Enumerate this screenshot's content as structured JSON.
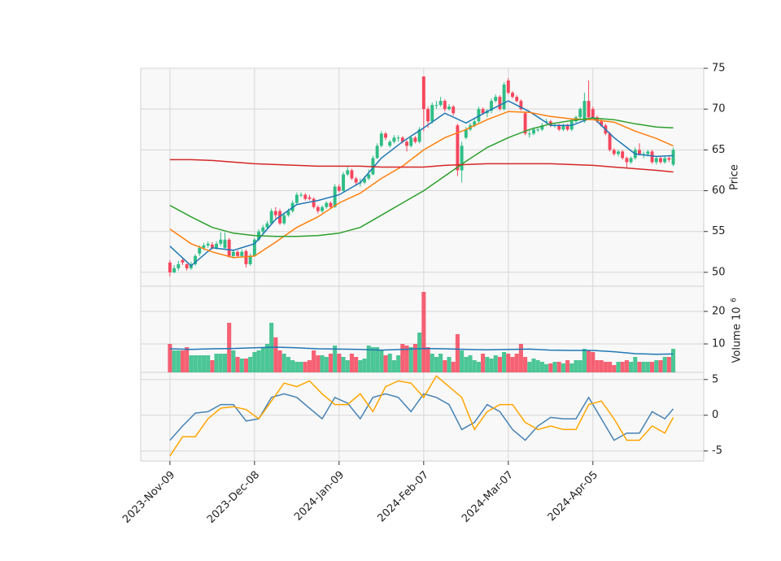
{
  "chart_data": {
    "type": "candlestick",
    "xlim": [
      -6.9,
      126.2
    ],
    "xticks": [
      {
        "value": 0,
        "label": "2023-Nov-09"
      },
      {
        "value": 20,
        "label": "2023-Dec-08"
      },
      {
        "value": 40,
        "label": "2024-Jan-09"
      },
      {
        "value": 60,
        "label": "2024-Feb-07"
      },
      {
        "value": 80,
        "label": "2024-Mar-07"
      },
      {
        "value": 100,
        "label": "2024-Apr-05"
      }
    ],
    "up_color": "#2ebd85",
    "down_color": "#f6465d",
    "candles": [
      [
        51.2,
        51.5,
        49.5,
        50
      ],
      [
        50,
        50.9,
        49.9,
        50.5
      ],
      [
        50.5,
        51.4,
        50.2,
        51.0
      ],
      [
        51.5,
        51.8,
        50.9,
        51.2
      ],
      [
        51.0,
        51.1,
        50.2,
        50.5
      ],
      [
        50.5,
        51.3,
        50.3,
        51.0
      ],
      [
        51.0,
        52.2,
        50.8,
        52.0
      ],
      [
        52.3,
        53.3,
        52.0,
        53.0
      ],
      [
        53.0,
        53.6,
        52.7,
        53.3
      ],
      [
        53.3,
        53.8,
        53.0,
        53.5
      ],
      [
        53.4,
        53.7,
        52.8,
        53.0
      ],
      [
        53.0,
        53.8,
        52.8,
        53.5
      ],
      [
        53.5,
        54.9,
        53.2,
        54.0
      ],
      [
        53.0,
        54.9,
        52.8,
        54.0
      ],
      [
        54.0,
        54.2,
        51.8,
        52.0
      ],
      [
        52.0,
        52.8,
        51.7,
        52.5
      ],
      [
        52.5,
        52.7,
        51.8,
        52.0
      ],
      [
        52.0,
        52.8,
        51.8,
        52.5
      ],
      [
        52.6,
        52.8,
        50.6,
        51.0
      ],
      [
        51.0,
        52.3,
        50.8,
        52.0
      ],
      [
        52.0,
        54.2,
        51.9,
        54.0
      ],
      [
        54.0,
        55.3,
        53.8,
        55.0
      ],
      [
        55.0,
        55.8,
        54.7,
        55.5
      ],
      [
        55.5,
        56.3,
        55.3,
        56.0
      ],
      [
        56.0,
        57.8,
        55.8,
        57.5
      ],
      [
        57.5,
        58.0,
        56.6,
        57.0
      ],
      [
        57.5,
        57.8,
        55.8,
        56.0
      ],
      [
        56.0,
        57.3,
        55.8,
        57.0
      ],
      [
        57.0,
        57.8,
        56.8,
        57.5
      ],
      [
        57.5,
        58.8,
        57.3,
        58.5
      ],
      [
        58.5,
        59.8,
        58.3,
        59.5
      ],
      [
        59.5,
        59.8,
        59.2,
        59.5
      ],
      [
        59.5,
        59.7,
        58.8,
        59.0
      ],
      [
        59.2,
        59.5,
        58.8,
        59.0
      ],
      [
        59.0,
        59.2,
        57.8,
        58.0
      ],
      [
        58.0,
        58.2,
        57.2,
        57.5
      ],
      [
        57.5,
        58.2,
        57.3,
        58.0
      ],
      [
        58.0,
        58.7,
        57.8,
        58.5
      ],
      [
        58.5,
        58.7,
        57.8,
        58.0
      ],
      [
        58.0,
        60.8,
        57.9,
        60.5
      ],
      [
        60.5,
        60.8,
        59.8,
        60.0
      ],
      [
        60.0,
        62.3,
        59.9,
        62.0
      ],
      [
        62.0,
        62.9,
        61.8,
        62.5
      ],
      [
        62.5,
        62.7,
        61.3,
        61.5
      ],
      [
        61.5,
        61.7,
        60.6,
        61.0
      ],
      [
        61.0,
        61.5,
        60.5,
        61.0
      ],
      [
        61.0,
        61.8,
        60.8,
        61.5
      ],
      [
        61.5,
        62.6,
        61.3,
        62.0
      ],
      [
        62.0,
        64.3,
        61.9,
        64.0
      ],
      [
        64.0,
        65.8,
        63.9,
        65.5
      ],
      [
        65.5,
        67.3,
        65.3,
        67.0
      ],
      [
        67.0,
        67.2,
        66.2,
        66.5
      ],
      [
        65.5,
        66.2,
        65.3,
        66.0
      ],
      [
        66.0,
        66.8,
        65.8,
        66.5
      ],
      [
        66.5,
        66.8,
        66.0,
        66.5
      ],
      [
        66.5,
        66.7,
        65.8,
        66.0
      ],
      [
        66.0,
        66.2,
        64.8,
        65.5
      ],
      [
        65.5,
        66.8,
        65.3,
        66.5
      ],
      [
        66.5,
        66.7,
        65.8,
        66.0
      ],
      [
        66.0,
        67.8,
        65.8,
        67.5
      ],
      [
        74.0,
        74.0,
        67.3,
        70.0
      ],
      [
        70.0,
        70.3,
        67.7,
        68.5
      ],
      [
        68.5,
        70.8,
        68.2,
        70.5
      ],
      [
        70.5,
        71.0,
        70.0,
        70.5
      ],
      [
        70.5,
        71.5,
        70.3,
        71.0
      ],
      [
        71.0,
        71.2,
        69.7,
        70.0
      ],
      [
        70.0,
        70.6,
        69.8,
        70.3
      ],
      [
        70.3,
        70.5,
        69.2,
        69.5
      ],
      [
        68.0,
        68.2,
        61.8,
        62.5
      ],
      [
        62.5,
        66.0,
        61.0,
        65.5
      ],
      [
        66.5,
        67.8,
        66.3,
        67.5
      ],
      [
        67.5,
        68.3,
        67.3,
        68.0
      ],
      [
        68.0,
        68.8,
        67.8,
        68.5
      ],
      [
        68.5,
        70.3,
        68.3,
        70.0
      ],
      [
        70.0,
        70.2,
        69.3,
        69.5
      ],
      [
        69.5,
        70.0,
        69.0,
        69.8
      ],
      [
        69.8,
        71.3,
        69.5,
        71.0
      ],
      [
        71.0,
        71.8,
        70.8,
        71.5
      ],
      [
        71.5,
        71.7,
        69.8,
        70.0
      ],
      [
        70.0,
        73.3,
        69.8,
        73.0
      ],
      [
        73.5,
        73.8,
        71.8,
        72.0
      ],
      [
        72.0,
        72.2,
        71.3,
        71.5
      ],
      [
        71.5,
        71.7,
        70.8,
        71.0
      ],
      [
        71.0,
        71.2,
        69.8,
        70.0
      ],
      [
        69.5,
        69.7,
        66.8,
        67.0
      ],
      [
        67.0,
        67.5,
        66.5,
        67.0
      ],
      [
        67.0,
        67.8,
        66.8,
        67.5
      ],
      [
        67.5,
        67.8,
        67.2,
        67.5
      ],
      [
        67.5,
        68.3,
        67.3,
        68.0
      ],
      [
        68.5,
        68.8,
        68.2,
        68.5
      ],
      [
        68.5,
        68.7,
        67.8,
        68.0
      ],
      [
        68.0,
        68.3,
        67.7,
        68.0
      ],
      [
        68.0,
        68.2,
        67.3,
        67.5
      ],
      [
        67.5,
        68.2,
        67.3,
        68.0
      ],
      [
        68.0,
        68.2,
        67.3,
        67.5
      ],
      [
        67.5,
        68.8,
        67.3,
        68.5
      ],
      [
        68.5,
        69.2,
        68.3,
        69.0
      ],
      [
        69.0,
        70.2,
        68.8,
        70.0
      ],
      [
        68.5,
        72.0,
        68.3,
        71.0
      ],
      [
        71.0,
        73.5,
        68.8,
        69.0
      ],
      [
        70.0,
        70.3,
        68.8,
        69.0
      ],
      [
        69.0,
        69.2,
        68.3,
        68.5
      ],
      [
        68.5,
        68.8,
        67.8,
        68.0
      ],
      [
        68.0,
        68.2,
        66.8,
        67.0
      ],
      [
        67.0,
        67.2,
        64.8,
        65.0
      ],
      [
        65.0,
        65.2,
        64.3,
        64.5
      ],
      [
        64.5,
        65.0,
        64.2,
        64.8
      ],
      [
        64.8,
        65.0,
        63.8,
        64.0
      ],
      [
        64.0,
        64.2,
        62.8,
        63.5
      ],
      [
        63.5,
        64.2,
        63.3,
        64.0
      ],
      [
        64.0,
        65.3,
        63.8,
        65.0
      ],
      [
        65.0,
        65.8,
        64.3,
        64.5
      ],
      [
        64.5,
        64.8,
        64.0,
        64.5
      ],
      [
        64.5,
        65.0,
        64.2,
        64.8
      ],
      [
        64.8,
        65.0,
        63.3,
        63.5
      ],
      [
        63.5,
        64.2,
        63.2,
        64.0
      ],
      [
        64.0,
        64.2,
        63.3,
        63.5
      ],
      [
        63.5,
        64.3,
        63.3,
        64.0
      ],
      [
        64.0,
        64.2,
        63.5,
        63.8
      ],
      [
        63.2,
        65.3,
        63.0,
        65.0
      ]
    ],
    "price": {
      "label": "Price",
      "ylim": [
        48.3,
        75
      ],
      "yticks": [
        50,
        55,
        60,
        65,
        70,
        75
      ],
      "lines": [
        {
          "color": "#1f77b4",
          "x": [
            0,
            5,
            10,
            15,
            20,
            25,
            30,
            35,
            40,
            45,
            50,
            55,
            60,
            65,
            70,
            75,
            80,
            85,
            90,
            95,
            100,
            105,
            110,
            115,
            119
          ],
          "values": [
            53.2,
            50.8,
            53,
            52.7,
            53.5,
            56.5,
            58.3,
            58.8,
            59.5,
            61,
            64,
            66,
            67.7,
            69.5,
            68.3,
            69.7,
            71,
            69.7,
            68,
            68,
            69,
            66.5,
            64.5,
            64.2,
            64.3
          ]
        },
        {
          "color": "#ff7f0e",
          "x": [
            0,
            5,
            10,
            15,
            20,
            25,
            30,
            35,
            40,
            45,
            50,
            55,
            60,
            65,
            70,
            75,
            80,
            85,
            90,
            95,
            100,
            105,
            110,
            115,
            119
          ],
          "values": [
            55.3,
            53.5,
            52.5,
            51.8,
            52.0,
            53.7,
            55.5,
            56.8,
            58.5,
            59.7,
            61.5,
            63,
            65,
            66.5,
            67.5,
            68.7,
            69.7,
            69.6,
            69.1,
            68.8,
            68.7,
            68.4,
            67.3,
            66.4,
            65.5
          ]
        },
        {
          "color": "#2ca02c",
          "x": [
            0,
            5,
            10,
            15,
            20,
            25,
            30,
            35,
            40,
            45,
            50,
            55,
            60,
            65,
            70,
            75,
            80,
            85,
            90,
            95,
            100,
            105,
            110,
            115,
            119
          ],
          "values": [
            58.2,
            56.8,
            55.5,
            54.8,
            54.5,
            54.4,
            54.4,
            54.5,
            54.8,
            55.5,
            57,
            58.5,
            60,
            61.8,
            63.6,
            65.3,
            66.5,
            67.5,
            68.2,
            68.6,
            68.9,
            68.7,
            68.2,
            67.8,
            67.7
          ]
        },
        {
          "color": "#d62728",
          "x": [
            0,
            5,
            10,
            15,
            20,
            25,
            30,
            35,
            40,
            45,
            50,
            55,
            60,
            65,
            70,
            75,
            80,
            85,
            90,
            95,
            100,
            105,
            110,
            115,
            119
          ],
          "values": [
            63.8,
            63.8,
            63.7,
            63.5,
            63.3,
            63.2,
            63.1,
            63.0,
            63.0,
            63.0,
            62.9,
            62.9,
            62.9,
            63.1,
            63.2,
            63.3,
            63.3,
            63.3,
            63.3,
            63.2,
            63.1,
            62.9,
            62.7,
            62.5,
            62.3
          ]
        }
      ]
    },
    "volume": {
      "label": "Volume  10",
      "exponent": "6",
      "ylim": [
        1.25,
        27.75
      ],
      "yticks": [
        10,
        20
      ],
      "values": [
        10,
        8,
        8,
        8,
        9,
        6.5,
        6.5,
        6.5,
        6.5,
        6.5,
        5,
        7,
        7,
        7,
        16.5,
        8,
        6,
        5.5,
        5.5,
        6,
        7.5,
        8,
        9,
        10,
        16.5,
        12,
        8,
        7,
        6,
        5,
        4.5,
        4.5,
        4.5,
        5,
        8,
        6.5,
        6.5,
        6,
        7,
        9.5,
        7,
        6,
        5,
        7,
        6,
        5,
        5.5,
        9.5,
        9,
        9,
        8,
        6.5,
        7,
        5,
        6.5,
        10,
        9.5,
        9,
        10,
        13.5,
        26,
        9,
        7,
        6,
        7,
        5,
        6,
        4.5,
        13,
        8,
        6,
        6.5,
        5,
        4.5,
        7,
        6,
        5.5,
        6.5,
        6,
        7.5,
        7,
        6,
        7,
        10,
        6,
        4.5,
        5.5,
        5,
        4.5,
        3.8,
        4,
        4.5,
        4.5,
        4,
        5,
        4,
        5,
        5,
        8.5,
        8,
        7.5,
        5,
        5,
        4.5,
        4.5,
        3.5,
        4.5,
        4.5,
        5,
        4.5,
        6,
        4.5,
        4.5,
        4.5,
        4.5,
        5,
        5,
        6,
        6,
        8.5
      ],
      "lines": [
        {
          "color": "#1f77b4",
          "x": [
            0,
            5,
            10,
            15,
            20,
            25,
            30,
            35,
            40,
            45,
            50,
            55,
            60,
            65,
            70,
            75,
            80,
            85,
            90,
            95,
            100,
            105,
            110,
            115,
            119
          ],
          "values": [
            8.5,
            8.3,
            8.5,
            8.6,
            8.8,
            9.0,
            8.8,
            8.5,
            8.4,
            8.3,
            8.1,
            8.3,
            8.6,
            8.5,
            8.3,
            8.2,
            8.3,
            8.4,
            8.1,
            8.0,
            8.0,
            7.6,
            7.0,
            6.8,
            6.9
          ]
        }
      ]
    },
    "indicator": {
      "ylim": [
        -6.4,
        6.0
      ],
      "yticks": [
        -5,
        0,
        5
      ],
      "lines": [
        {
          "color": "#4682b4",
          "x": [
            0,
            3,
            6,
            9,
            12,
            15,
            18,
            21,
            24,
            27,
            30,
            33,
            36,
            39,
            42,
            45,
            48,
            51,
            54,
            57,
            60,
            63,
            66,
            69,
            72,
            75,
            78,
            81,
            84,
            87,
            90,
            93,
            96,
            99,
            102,
            105,
            108,
            111,
            114,
            117,
            119
          ],
          "values": [
            -3.5,
            -1.5,
            0.3,
            0.5,
            1.5,
            1.5,
            -0.8,
            -0.5,
            2.5,
            3,
            2.5,
            1,
            -0.5,
            2.5,
            1.7,
            -0.5,
            2.5,
            3,
            2.5,
            0.5,
            3,
            2.5,
            1.5,
            -2,
            -1,
            1.5,
            0.5,
            -2,
            -3.5,
            -1.5,
            -0.3,
            -0.5,
            -0.5,
            2.5,
            -0.5,
            -3.5,
            -2.5,
            -2.5,
            0.5,
            -0.5,
            0.9
          ]
        },
        {
          "color": "#ffa500",
          "x": [
            0,
            3,
            6,
            9,
            12,
            15,
            18,
            21,
            24,
            27,
            30,
            33,
            36,
            39,
            42,
            45,
            48,
            51,
            54,
            57,
            60,
            63,
            66,
            69,
            72,
            75,
            78,
            81,
            84,
            87,
            90,
            93,
            96,
            99,
            102,
            105,
            108,
            111,
            114,
            117,
            119
          ],
          "values": [
            -5.7,
            -3,
            -3,
            -0.5,
            1,
            1.2,
            0.8,
            -0.5,
            2,
            4.5,
            4,
            4.8,
            3,
            1.5,
            1.5,
            3,
            0.5,
            4,
            4.8,
            4.5,
            2.5,
            5.5,
            4,
            2.5,
            -2,
            0.5,
            1.5,
            1.5,
            -1,
            -2,
            -1.5,
            -2,
            -2,
            1.5,
            2,
            -0.5,
            -3.5,
            -3.5,
            -1.5,
            -2.5,
            -0.3
          ]
        }
      ]
    }
  }
}
